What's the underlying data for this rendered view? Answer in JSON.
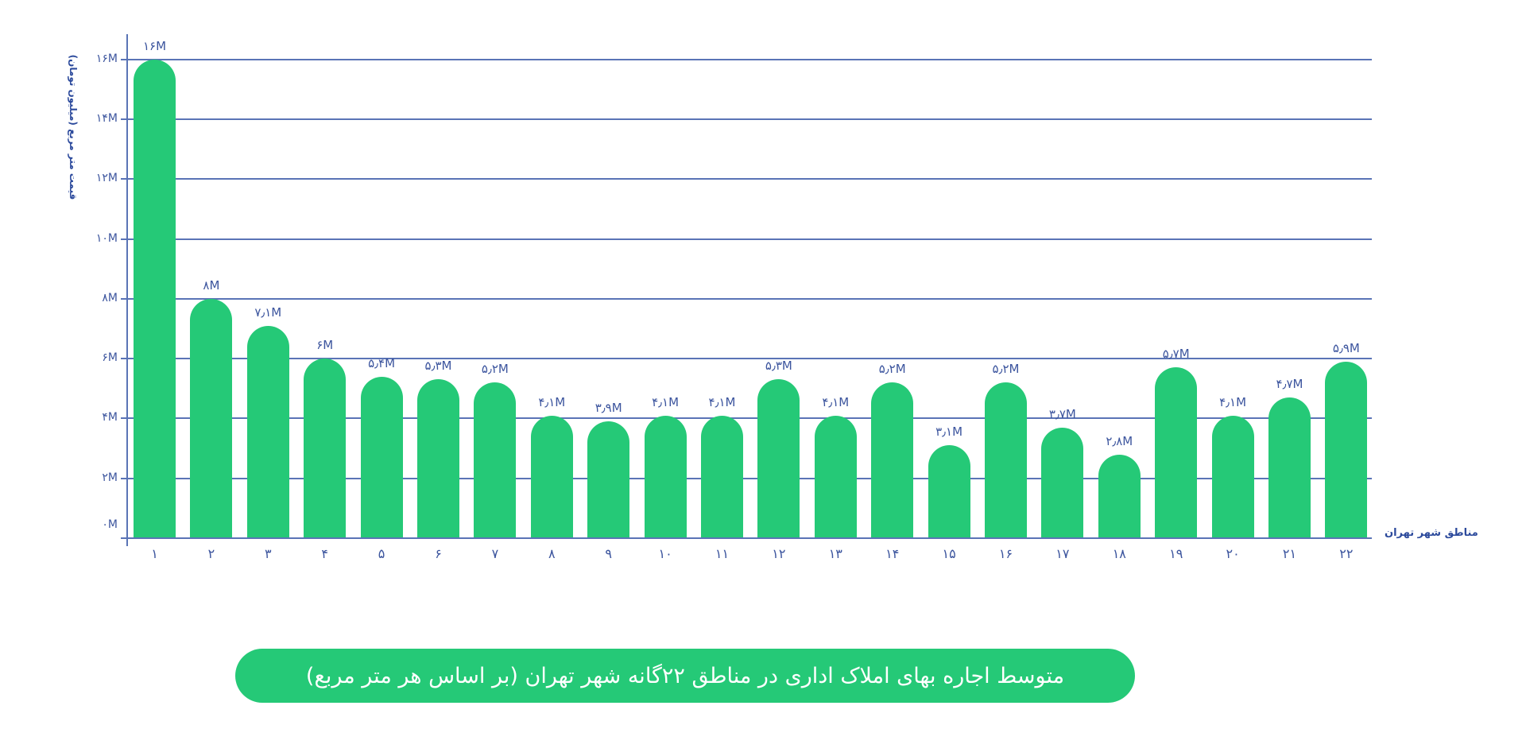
{
  "chart_data": {
    "type": "bar",
    "title": "متوسط اجاره بهای املاک اداری در مناطق ۲۲گانه شهر تهران (بر اساس هر متر مربع)",
    "xlabel": "مناطق شهر تهران",
    "ylabel": "قیمت متر مربع (میلیون تومان)",
    "ylim": [
      0,
      16
    ],
    "grid": true,
    "yticks": [
      "۰M",
      "۲M",
      "۴M",
      "۶M",
      "۸M",
      "۱۰M",
      "۱۲M",
      "۱۴M",
      "۱۶M"
    ],
    "ytick_values": [
      0,
      2,
      4,
      6,
      8,
      10,
      12,
      14,
      16
    ],
    "categories": [
      "۱",
      "۲",
      "۳",
      "۴",
      "۵",
      "۶",
      "۷",
      "۸",
      "۹",
      "۱۰",
      "۱۱",
      "۱۲",
      "۱۳",
      "۱۴",
      "۱۵",
      "۱۶",
      "۱۷",
      "۱۸",
      "۱۹",
      "۲۰",
      "۲۱",
      "۲۲"
    ],
    "values": [
      16,
      8,
      7.1,
      6,
      5.4,
      5.3,
      5.2,
      4.1,
      3.9,
      4.1,
      4.1,
      5.3,
      4.1,
      5.2,
      3.1,
      5.2,
      3.7,
      2.8,
      5.7,
      4.1,
      4.7,
      5.9
    ],
    "value_labels": [
      "۱۶M",
      "۸M",
      "۷٫۱M",
      "۶M",
      "۵٫۴M",
      "۵٫۳M",
      "۵٫۲M",
      "۴٫۱M",
      "۳٫۹M",
      "۴٫۱M",
      "۴٫۱M",
      "۵٫۳M",
      "۴٫۱M",
      "۵٫۲M",
      "۳٫۱M",
      "۵٫۲M",
      "۳٫۷M",
      "۲٫۸M",
      "۵٫۷M",
      "۴٫۱M",
      "۴٫۷M",
      "۵٫۹M"
    ],
    "colors": {
      "bar": "#25c977",
      "text": "#2c4a9c",
      "grid": "#5a74b6"
    }
  }
}
